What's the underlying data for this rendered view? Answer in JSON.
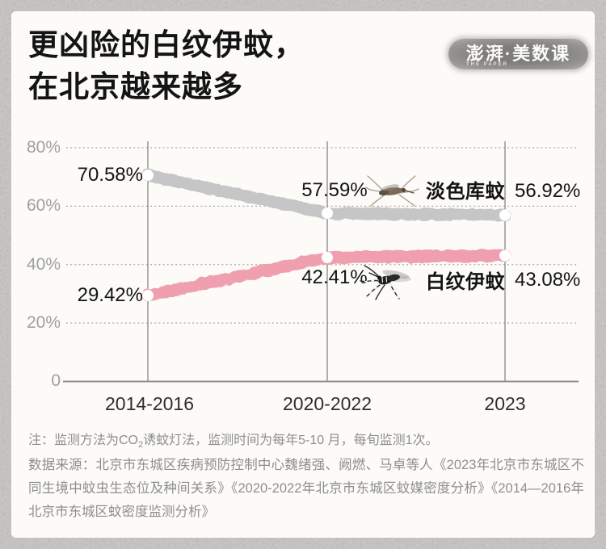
{
  "title": {
    "line1": "更凶险的白纹伊蚊，",
    "line2": "在北京越来越多"
  },
  "logo": {
    "text": "澎湃·美数课",
    "subtext": "THE PAPER"
  },
  "chart_data": {
    "type": "line",
    "title": "更凶险的白纹伊蚊，在北京越来越多",
    "categories": [
      "2014-2016",
      "2020-2022",
      "2023"
    ],
    "series": [
      {
        "name": "淡色库蚊",
        "color": "#c6c6c6",
        "values": [
          70.58,
          57.59,
          56.92
        ],
        "point_labels": [
          "70.58%",
          "57.59%",
          "56.92%"
        ]
      },
      {
        "name": "白纹伊蚊",
        "color": "#f09fae",
        "values": [
          29.42,
          42.41,
          43.08
        ],
        "point_labels": [
          "29.42%",
          "42.41%",
          "43.08%"
        ]
      }
    ],
    "y_ticks": [
      {
        "label": "80%",
        "value": 80
      },
      {
        "label": "60%",
        "value": 60
      },
      {
        "label": "40%",
        "value": 40
      },
      {
        "label": "20%",
        "value": 20
      },
      {
        "label": "0",
        "value": 0
      }
    ],
    "ylim": [
      0,
      80
    ],
    "grid": "horizontal-dotted",
    "legend_position": "inline-near-lines"
  },
  "footnote": {
    "prefix": "注：监测方法为CO",
    "subscript": "2",
    "suffix": "诱蚊灯法，监测时间为每年5-10 月，每旬监测1次。"
  },
  "source": "数据来源：北京市东城区疾病预防控制中心魏绪强、阙燃、马卓等人《2023年北京市东城区不同生境中蚊虫生态位及种间关系》《2020-2022年北京市东城区蚊媒密度分析》《2014—2016年北京市东城区蚊密度监测分析》",
  "colors": {
    "frame_background": "#c6c4c1",
    "card_background": "#fcfbf8",
    "gray_line": "#c6c6c6",
    "pink_line": "#f09fae",
    "axis_line": "#8f8f8f",
    "grid_dotted": "#ababab",
    "dark_text": "#141414",
    "muted_text": "#8e8e8e",
    "ytick_text": "#9f9f9f"
  }
}
